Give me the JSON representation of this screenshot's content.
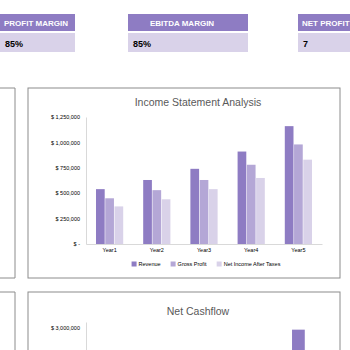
{
  "kpis": [
    {
      "label": "PROFIT MARGIN",
      "value": "85%"
    },
    {
      "label": "EBITDA MARGIN",
      "value": "85%"
    },
    {
      "label": "NET PROFIT",
      "value": "7"
    }
  ],
  "chart_data": [
    {
      "type": "bar",
      "title": "Income Statement Analysis",
      "categories": [
        "Year1",
        "Year2",
        "Year3",
        "Year4",
        "Year5"
      ],
      "series": [
        {
          "name": "Revenue",
          "color": "#8e7cc3",
          "values": [
            540000,
            630000,
            740000,
            910000,
            1160000
          ]
        },
        {
          "name": "Gross Profit",
          "color": "#b4a7d6",
          "values": [
            450000,
            530000,
            630000,
            780000,
            980000
          ]
        },
        {
          "name": "Net Income After Taxes",
          "color": "#d9d2e9",
          "values": [
            370000,
            440000,
            540000,
            650000,
            830000
          ]
        }
      ],
      "ylim": [
        0,
        1250000
      ],
      "yticks": [
        {
          "value": 0,
          "label": "$ -"
        },
        {
          "value": 250000,
          "label": "$ 250,000"
        },
        {
          "value": 500000,
          "label": "$ 500,000"
        },
        {
          "value": 750000,
          "label": "$ 750,000"
        },
        {
          "value": 1000000,
          "label": "$ 1,000,000"
        },
        {
          "value": 1250000,
          "label": "$ 1,250,000"
        }
      ],
      "grid": false,
      "legend": "bottom"
    },
    {
      "type": "bar",
      "title": "Net Cashflow",
      "categories": [
        null,
        null,
        null,
        null,
        null
      ],
      "values": [
        null,
        null,
        null,
        null,
        2950000
      ],
      "color": "#8e7cc3",
      "ylim": [
        0,
        3200000
      ],
      "yticks": [
        {
          "value": 3000000,
          "label": "$ 3,000,000"
        }
      ],
      "grid": false
    }
  ]
}
